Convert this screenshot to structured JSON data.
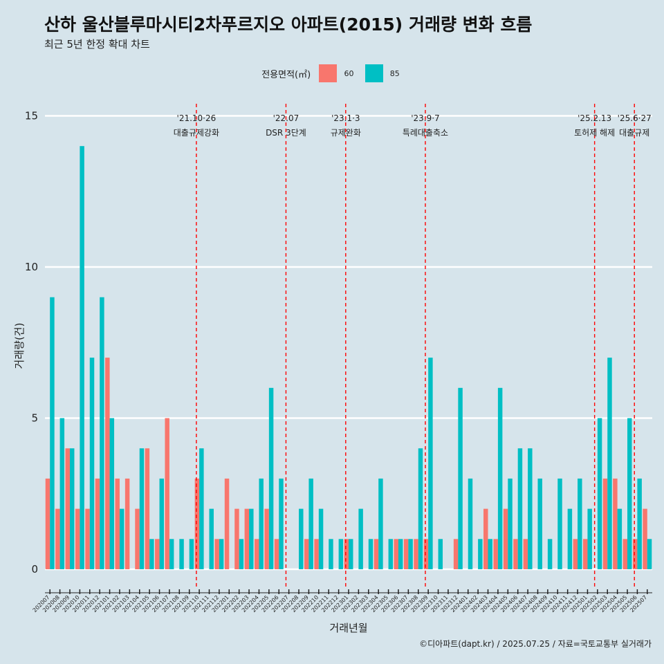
{
  "title": "산하 울산블루마시티2차푸르지오 아파트(2015) 거래량 변화 흐름",
  "subtitle": "최근 5년 한정 확대 차트",
  "caption": "©디아파트(dapt.kr) / 2025.07.25 / 자료=국토교통부 실거래가",
  "legend": {
    "title": "전용면적(㎡)",
    "items": [
      {
        "label": "60",
        "color": "#f8766d"
      },
      {
        "label": "85",
        "color": "#00bfc4"
      }
    ]
  },
  "chart_data": {
    "type": "bar",
    "xlabel": "거래년월",
    "ylabel": "거래량(건)",
    "ylim": [
      -0.6,
      15.5
    ],
    "yticks": [
      0,
      5,
      10,
      15
    ],
    "categories": [
      "202007",
      "202008",
      "202009",
      "202010",
      "202011",
      "202012",
      "202101",
      "202102",
      "202103",
      "202104",
      "202105",
      "202106",
      "202107",
      "202108",
      "202109",
      "202110",
      "202111",
      "202112",
      "202201",
      "202202",
      "202203",
      "202204",
      "202205",
      "202206",
      "202207",
      "202208",
      "202209",
      "202210",
      "202211",
      "202212",
      "202301",
      "202302",
      "202303",
      "202304",
      "202305",
      "202306",
      "202307",
      "202308",
      "202309",
      "202310",
      "202311",
      "202312",
      "202401",
      "202402",
      "202403",
      "202404",
      "202405",
      "202406",
      "202407",
      "202408",
      "202409",
      "202410",
      "202411",
      "202412",
      "202501",
      "202502",
      "202503",
      "202504",
      "202505",
      "202506",
      "202507"
    ],
    "series": [
      {
        "name": "60",
        "color": "#f8766d",
        "values": [
          3,
          2,
          4,
          2,
          2,
          3,
          7,
          3,
          3,
          2,
          4,
          1,
          5,
          0,
          0,
          3,
          0,
          1,
          3,
          2,
          2,
          1,
          2,
          1,
          0,
          0,
          1,
          1,
          0,
          0,
          1,
          0,
          0,
          1,
          0,
          1,
          1,
          1,
          1,
          0,
          0,
          1,
          0,
          0,
          2,
          1,
          2,
          1,
          1,
          0,
          0,
          0,
          0,
          1,
          1,
          0,
          3,
          3,
          1,
          1,
          2
        ]
      },
      {
        "name": "85",
        "color": "#00bfc4",
        "values": [
          9,
          5,
          4,
          14,
          7,
          9,
          5,
          2,
          0,
          4,
          1,
          3,
          1,
          1,
          1,
          4,
          2,
          1,
          0,
          1,
          2,
          3,
          6,
          3,
          0,
          2,
          3,
          2,
          1,
          1,
          1,
          2,
          1,
          3,
          1,
          1,
          1,
          4,
          7,
          1,
          0,
          6,
          3,
          1,
          1,
          6,
          3,
          4,
          4,
          3,
          1,
          3,
          2,
          3,
          2,
          5,
          7,
          2,
          5,
          3,
          1
        ]
      }
    ],
    "events": [
      {
        "date": "'21.10·26",
        "label": "대출규제강화",
        "at": "202110"
      },
      {
        "date": "'22.07",
        "label": "DSR 3단계",
        "at": "202207"
      },
      {
        "date": "'23.1·3",
        "label": "규제완화",
        "at": "202301"
      },
      {
        "date": "'23.9·7",
        "label": "특례대출축소",
        "at": "202309"
      },
      {
        "date": "'25.2.13",
        "label": "토허제 해제",
        "at": "202502"
      },
      {
        "date": "'25.6·27",
        "label": "대출규제",
        "at": "202506"
      }
    ]
  }
}
